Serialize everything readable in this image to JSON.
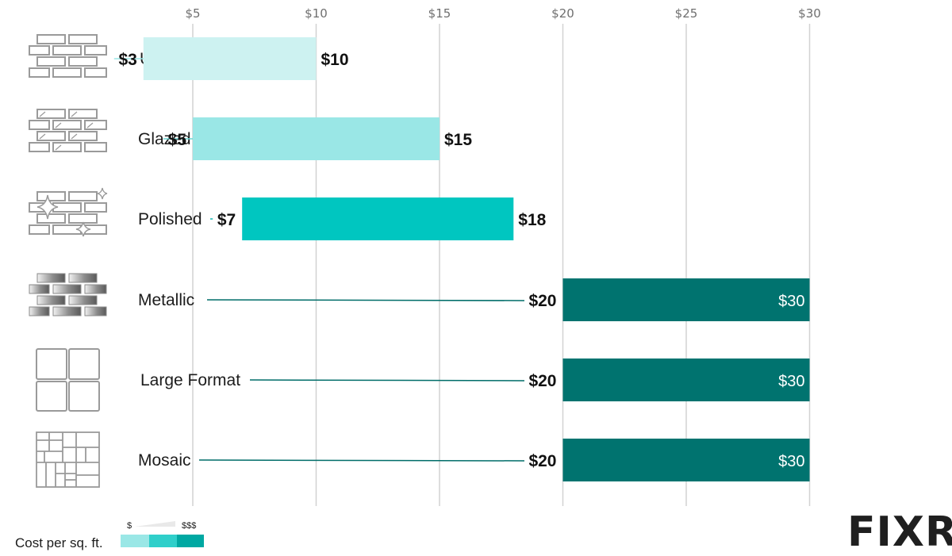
{
  "chart_data": {
    "type": "bar",
    "subtype": "floating-range-horizontal",
    "title": "",
    "xlabel": "",
    "ylabel": "",
    "xlim": [
      0,
      30
    ],
    "x_ticks": [
      5,
      10,
      15,
      20,
      25,
      30
    ],
    "x_tick_labels": [
      "$5",
      "$10",
      "$15",
      "$20",
      "$25",
      "$30"
    ],
    "grid": true,
    "categories": [
      "Unglazed",
      "Glazed",
      "Polished",
      "Metallic",
      "Large Format",
      "Mosaic"
    ],
    "icons": [
      "brick-tile-icon",
      "glazed-tile-icon",
      "polished-tile-icon",
      "metallic-tile-icon",
      "large-format-tile-icon",
      "mosaic-tile-icon"
    ],
    "low": [
      3,
      5,
      7,
      20,
      20,
      20
    ],
    "high": [
      10,
      15,
      18,
      30,
      30,
      30
    ],
    "low_labels": [
      "$3",
      "$5",
      "$7",
      "$20",
      "$20",
      "$20"
    ],
    "high_labels": [
      "$10",
      "$15",
      "$18",
      "$30",
      "$30",
      "$30"
    ],
    "bar_colors": [
      "#cdf2f1",
      "#9ae7e6",
      "#00c6c0",
      "#00736f",
      "#00736f",
      "#00736f"
    ],
    "connector_colors": [
      "#9ae7e6",
      "#6fd6d3",
      "#17b9b4",
      "#006d69",
      "#006d69",
      "#006d69"
    ],
    "legend": {
      "title": "Cost per sq. ft.",
      "low_marker": "$",
      "high_marker": "$$$",
      "colors": [
        "#9ae7e6",
        "#2fcfca",
        "#00a8a2"
      ]
    }
  },
  "brand": {
    "logo_text": "FIXR"
  }
}
